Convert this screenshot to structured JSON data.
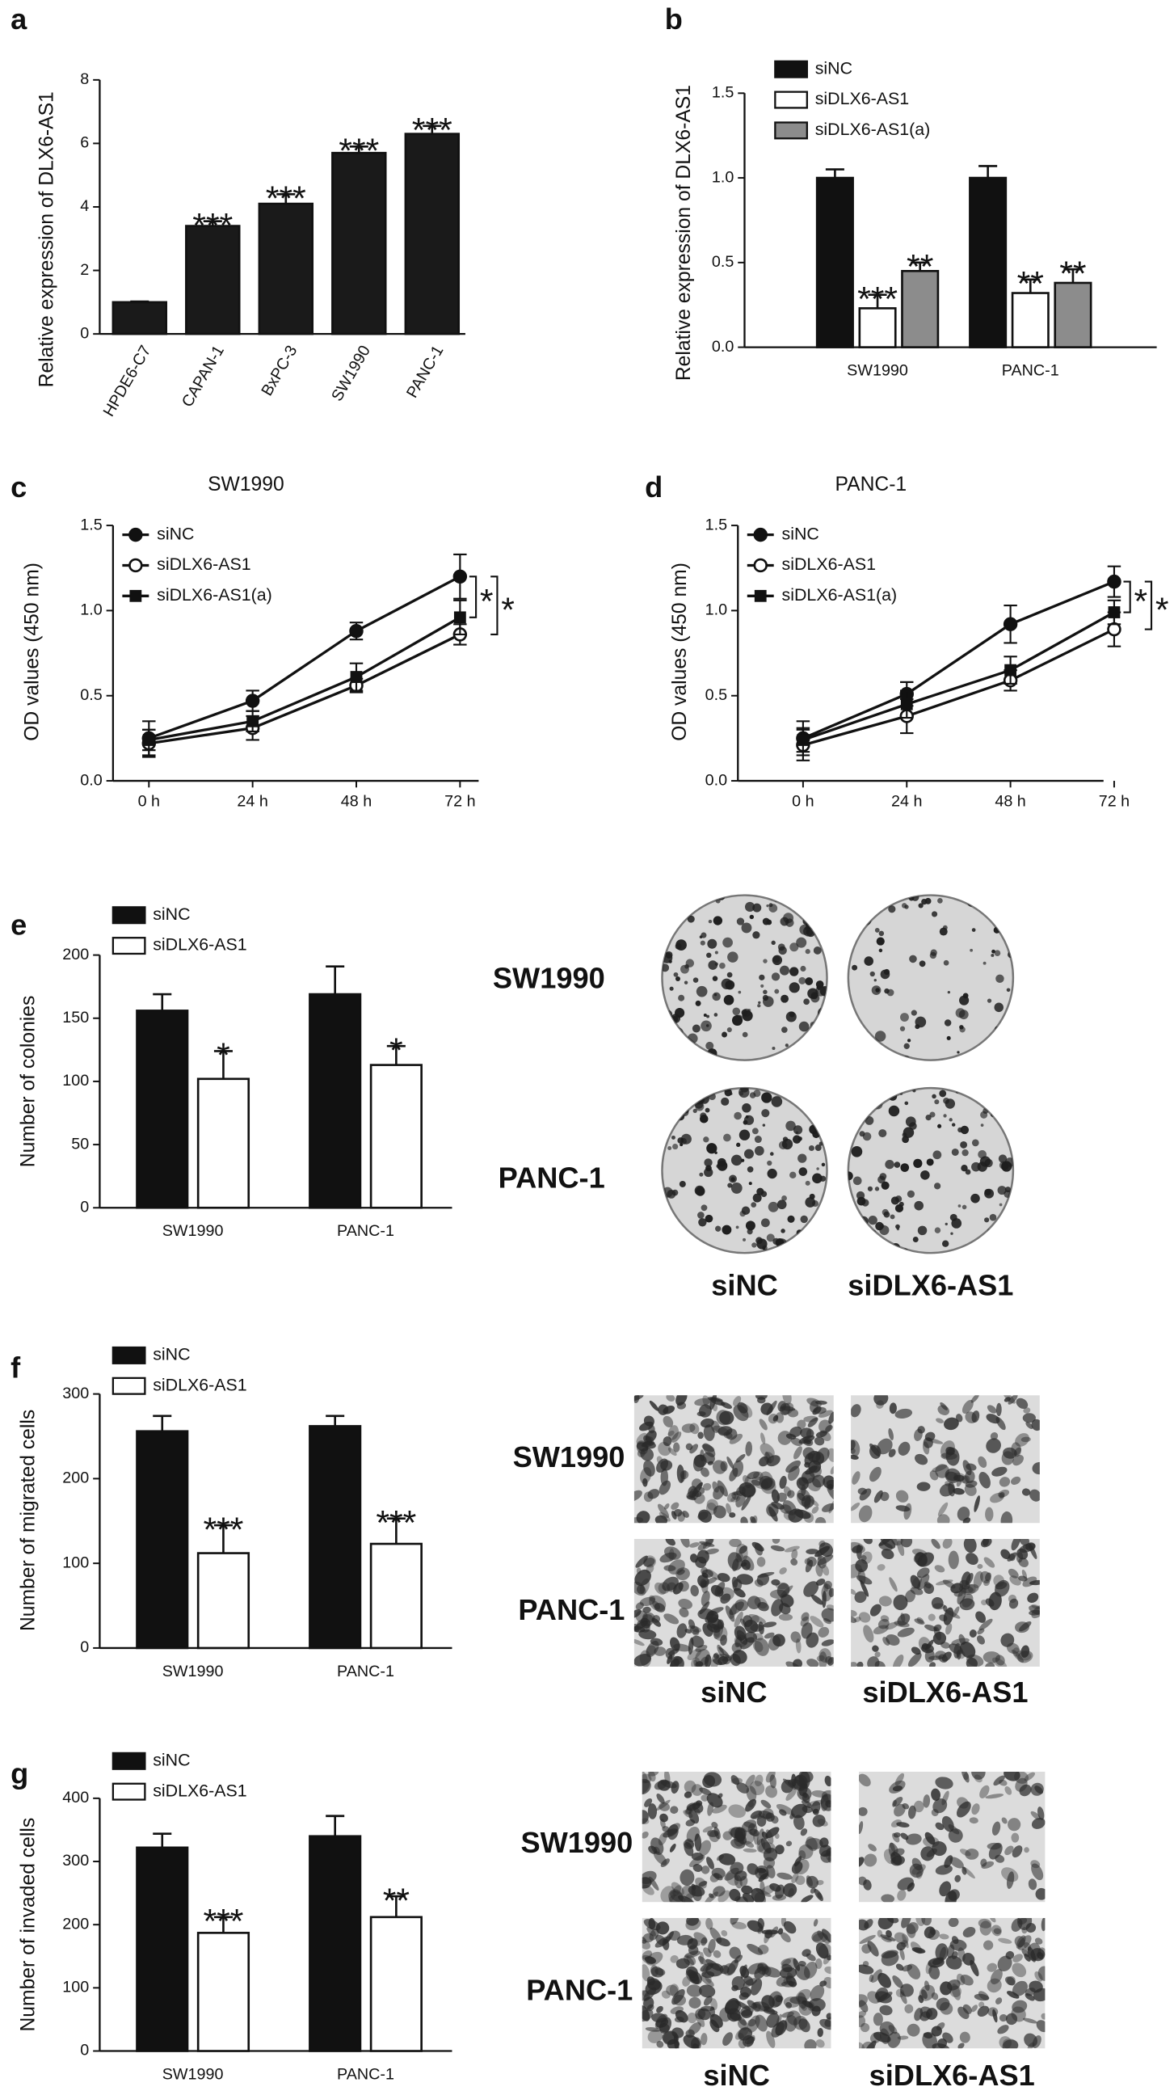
{
  "chart_data": [
    {
      "type": "bar",
      "panel_label": "a",
      "ylabel": "Relative expression of DLX6-AS1",
      "categories": [
        "HPDE6-C7",
        "CAPAN-1",
        "BxPC-3",
        "SW1990",
        "PANC-1"
      ],
      "values": [
        1,
        3.4,
        4.1,
        5.7,
        6.3
      ],
      "errors": [
        0.02,
        0.15,
        0.3,
        0.2,
        0.25
      ],
      "annotations": [
        null,
        "***",
        "***",
        "***",
        "***"
      ],
      "color": "#1a1a1a",
      "ylim": [
        0,
        8
      ],
      "yticks": [
        0,
        2,
        4,
        6,
        8
      ]
    },
    {
      "type": "bar",
      "panel_label": "b",
      "ylabel": "Relative expression of DLX6-AS1",
      "categories": [
        "SW1990",
        "PANC-1"
      ],
      "series": [
        {
          "name": "siNC",
          "color": "#111111",
          "values": [
            1.0,
            1.0
          ],
          "errors": [
            0.05,
            0.07
          ],
          "annotations": [
            null,
            null
          ]
        },
        {
          "name": "siDLX6-AS1",
          "color": "#ffffff",
          "values": [
            0.23,
            0.32
          ],
          "errors": [
            0.08,
            0.08
          ],
          "annotations": [
            "***",
            "**"
          ]
        },
        {
          "name": "siDLX6-AS1(a)",
          "color": "#8c8c8c",
          "values": [
            0.45,
            0.38
          ],
          "errors": [
            0.05,
            0.08
          ],
          "annotations": [
            "**",
            "**"
          ]
        }
      ],
      "ylim": [
        0,
        1.5
      ],
      "yticks": [
        {
          "value": 0,
          "label": "0.0"
        },
        {
          "value": 0.5,
          "label": "0.5"
        },
        {
          "value": 1,
          "label": "1.0"
        },
        {
          "value": 1.5,
          "label": "1.5"
        }
      ],
      "legend": "upper left"
    },
    {
      "type": "line",
      "panel_label": "c",
      "title": "SW1990",
      "ylabel": "OD values (450 nm)",
      "categories": [
        "0 h",
        "24 h",
        "48 h",
        "72 h"
      ],
      "series": [
        {
          "name": "siNC",
          "marker": "filled-circle",
          "color": "#111111",
          "values": [
            0.25,
            0.47,
            0.88,
            1.2
          ],
          "errors": [
            0.1,
            0.06,
            0.05,
            0.13
          ]
        },
        {
          "name": "siDLX6-AS1",
          "marker": "open-circle",
          "color": "#111111",
          "values": [
            0.22,
            0.31,
            0.56,
            0.86
          ],
          "errors": [
            0.08,
            0.07,
            0.04,
            0.06
          ]
        },
        {
          "name": "siDLX6-AS1(a)",
          "marker": "filled-square",
          "color": "#111111",
          "values": [
            0.24,
            0.35,
            0.61,
            0.96
          ],
          "errors": [
            0.06,
            0.06,
            0.08,
            0.1
          ]
        }
      ],
      "annotations": [
        "*",
        "*"
      ],
      "ylim": [
        0,
        1.5
      ],
      "yticks": [
        {
          "value": 0,
          "label": "0.0"
        },
        {
          "value": 0.5,
          "label": "0.5"
        },
        {
          "value": 1,
          "label": "1.0"
        },
        {
          "value": 1.5,
          "label": "1.5"
        }
      ],
      "legend": "upper left"
    },
    {
      "type": "line",
      "panel_label": "d",
      "title": "PANC-1",
      "ylabel": "OD values (450 nm)",
      "categories": [
        "0 h",
        "24 h",
        "48 h",
        "72 h"
      ],
      "series": [
        {
          "name": "siNC",
          "marker": "filled-circle",
          "color": "#111111",
          "values": [
            0.25,
            0.51,
            0.92,
            1.17
          ],
          "errors": [
            0.1,
            0.07,
            0.11,
            0.09
          ]
        },
        {
          "name": "siDLX6-AS1",
          "marker": "open-circle",
          "color": "#111111",
          "values": [
            0.21,
            0.38,
            0.59,
            0.89
          ],
          "errors": [
            0.09,
            0.1,
            0.06,
            0.1
          ]
        },
        {
          "name": "siDLX6-AS1(a)",
          "marker": "filled-square",
          "color": "#111111",
          "values": [
            0.24,
            0.45,
            0.65,
            0.99
          ],
          "errors": [
            0.07,
            0.08,
            0.08,
            0.07
          ]
        }
      ],
      "annotations": [
        "*",
        "*"
      ],
      "ylim": [
        0,
        1.5
      ],
      "yticks": [
        {
          "value": 0,
          "label": "0.0"
        },
        {
          "value": 0.5,
          "label": "0.5"
        },
        {
          "value": 1,
          "label": "1.0"
        },
        {
          "value": 1.5,
          "label": "1.5"
        }
      ],
      "legend": "upper left"
    },
    {
      "type": "bar",
      "panel_label": "e",
      "ylabel": "Number of colonies",
      "categories": [
        "SW1990",
        "PANC-1"
      ],
      "series": [
        {
          "name": "siNC",
          "color": "#111111",
          "values": [
            156,
            169
          ],
          "errors": [
            13,
            22
          ],
          "annotations": [
            null,
            null
          ]
        },
        {
          "name": "siDLX6-AS1",
          "color": "#ffffff",
          "values": [
            102,
            113
          ],
          "errors": [
            22,
            15
          ],
          "annotations": [
            "*",
            "*"
          ]
        }
      ],
      "ylim": [
        0,
        200
      ],
      "yticks": [
        0,
        50,
        100,
        150,
        200
      ],
      "legend": "upper left",
      "images": {
        "row_labels": [
          "SW1990",
          "PANC-1"
        ],
        "col_labels": [
          "siNC",
          "siDLX6-AS1"
        ]
      }
    },
    {
      "type": "bar",
      "panel_label": "f",
      "ylabel": "Number of migrated cells",
      "categories": [
        "SW1990",
        "PANC-1"
      ],
      "series": [
        {
          "name": "siNC",
          "color": "#111111",
          "values": [
            256,
            262
          ],
          "errors": [
            18,
            12
          ],
          "annotations": [
            null,
            null
          ]
        },
        {
          "name": "siDLX6-AS1",
          "color": "#ffffff",
          "values": [
            112,
            123
          ],
          "errors": [
            33,
            30
          ],
          "annotations": [
            "***",
            "***"
          ]
        }
      ],
      "ylim": [
        0,
        300
      ],
      "yticks": [
        0,
        100,
        200,
        300
      ],
      "legend": "upper left",
      "images": {
        "row_labels": [
          "SW1990",
          "PANC-1"
        ],
        "col_labels": [
          "siNC",
          "siDLX6-AS1"
        ]
      }
    },
    {
      "type": "bar",
      "panel_label": "g",
      "ylabel": "Number of invaded cells",
      "categories": [
        "SW1990",
        "PANC-1"
      ],
      "series": [
        {
          "name": "siNC",
          "color": "#111111",
          "values": [
            322,
            340
          ],
          "errors": [
            22,
            32
          ],
          "annotations": [
            null,
            null
          ]
        },
        {
          "name": "siDLX6-AS1",
          "color": "#ffffff",
          "values": [
            187,
            212
          ],
          "errors": [
            25,
            33
          ],
          "annotations": [
            "***",
            "**"
          ]
        }
      ],
      "ylim": [
        0,
        400
      ],
      "yticks": [
        0,
        100,
        200,
        300,
        400
      ],
      "legend": "upper left",
      "images": {
        "row_labels": [
          "SW1990",
          "PANC-1"
        ],
        "col_labels": [
          "siNC",
          "siDLX6-AS1"
        ]
      }
    }
  ]
}
